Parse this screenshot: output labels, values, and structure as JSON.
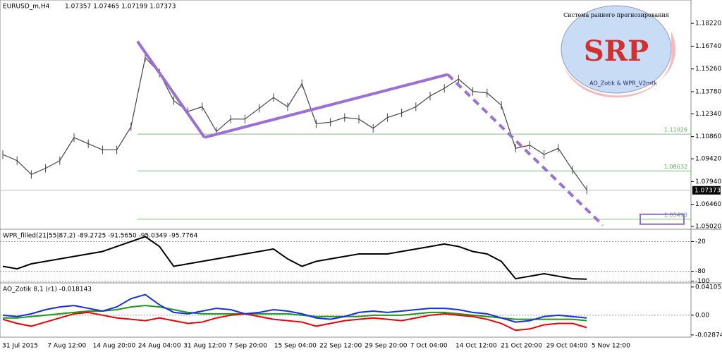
{
  "header": {
    "symbol": "EURUSD_m,H4",
    "quotes": "1.07357 1.07465 1.07199 1.07373"
  },
  "price_panel": {
    "ylim": [
      1.0484,
      1.1974
    ],
    "yticks": [
      {
        "value": 1.1822,
        "label": "1.18220"
      },
      {
        "value": 1.1674,
        "label": "1.16740"
      },
      {
        "value": 1.1526,
        "label": "1.15260"
      },
      {
        "value": 1.1378,
        "label": "1.13780"
      },
      {
        "value": 1.1234,
        "label": "1.12340"
      },
      {
        "value": 1.1086,
        "label": "1.10860"
      },
      {
        "value": 1.0942,
        "label": "1.09420"
      },
      {
        "value": 1.0794,
        "label": "1.07940"
      },
      {
        "value": 1.0646,
        "label": "1.06460"
      },
      {
        "value": 1.0502,
        "label": "1.05020"
      }
    ],
    "closes": [
      1.097,
      1.093,
      1.084,
      1.088,
      1.093,
      1.108,
      1.104,
      1.1,
      1.1,
      1.115,
      1.16,
      1.15,
      1.132,
      1.125,
      1.128,
      1.112,
      1.12,
      1.12,
      1.127,
      1.134,
      1.128,
      1.143,
      1.117,
      1.118,
      1.121,
      1.12,
      1.114,
      1.121,
      1.124,
      1.128,
      1.135,
      1.14,
      1.146,
      1.138,
      1.137,
      1.129,
      1.101,
      1.103,
      1.097,
      1.101,
      1.087,
      1.074
    ],
    "levels": [
      {
        "value": 1.11026,
        "label": "1.11026"
      },
      {
        "value": 1.08632,
        "label": "1.08632"
      },
      {
        "value": 1.05493,
        "label": "1.05493"
      }
    ],
    "current": {
      "value": 1.07373,
      "label": "1.07373"
    },
    "trend": [
      1.1705,
      1.1081,
      1.149,
      1.051
    ]
  },
  "wpr_panel": {
    "label": "WPR_filled(21|55|87,2) -89.2725 -91.5650 -95.0349 -95.7764",
    "ylim": [
      -102,
      2
    ],
    "yticks": [
      -20,
      -80,
      -100
    ],
    "values": [
      -70,
      -75,
      -65,
      -60,
      -55,
      -50,
      -45,
      -40,
      -30,
      -20,
      -10,
      -30,
      -70,
      -65,
      -60,
      -55,
      -50,
      -45,
      -40,
      -35,
      -55,
      -70,
      -60,
      -55,
      -50,
      -45,
      -45,
      -45,
      -40,
      -35,
      -30,
      -25,
      -30,
      -40,
      -45,
      -60,
      -95,
      -90,
      -85,
      -90,
      -95,
      -96
    ]
  },
  "ao_panel": {
    "label": "AO_Zotik 8.1 (r1) -0.018143",
    "ylim": [
      -0.032,
      0.046
    ],
    "yticks": [
      {
        "value": 0.041053,
        "label": "0.041053"
      },
      {
        "value": 0,
        "label": "0.00"
      },
      {
        "value": -0.02874,
        "label": "-0.02874"
      }
    ],
    "blue": [
      0,
      -0.002,
      0.002,
      0.008,
      0.012,
      0.014,
      0.01,
      0.006,
      0.012,
      0.024,
      0.03,
      0.015,
      0.004,
      0.002,
      0.006,
      0.01,
      0.008,
      0.002,
      0.004,
      0.008,
      0.006,
      0.002,
      -0.004,
      -0.006,
      -0.002,
      0.004,
      0.006,
      0.004,
      0.006,
      0.008,
      0.01,
      0.01,
      0.008,
      0.004,
      0.002,
      -0.004,
      -0.01,
      -0.008,
      -0.002,
      0,
      -0.002,
      -0.004
    ],
    "red": [
      -0.006,
      -0.012,
      -0.016,
      -0.01,
      -0.004,
      0.002,
      0.004,
      0,
      -0.004,
      -0.006,
      -0.008,
      -0.004,
      -0.008,
      -0.012,
      -0.01,
      -0.004,
      0,
      0.002,
      -0.002,
      -0.006,
      -0.008,
      -0.01,
      -0.016,
      -0.012,
      -0.008,
      -0.006,
      -0.004,
      -0.006,
      -0.008,
      -0.004,
      0,
      0.002,
      0,
      -0.002,
      -0.006,
      -0.012,
      -0.022,
      -0.02,
      -0.014,
      -0.012,
      -0.012,
      -0.018
    ],
    "green": [
      -0.004,
      -0.004,
      -0.002,
      0,
      0.002,
      0.004,
      0.006,
      0.006,
      0.008,
      0.012,
      0.014,
      0.012,
      0.008,
      0.004,
      0.002,
      0.002,
      0.002,
      0.002,
      0.002,
      0.002,
      0.002,
      0,
      -0.002,
      -0.002,
      -0.002,
      -0.002,
      0,
      0,
      0,
      0.002,
      0.004,
      0.004,
      0.002,
      0,
      -0.002,
      -0.004,
      -0.006,
      -0.006,
      -0.006,
      -0.006,
      -0.006,
      -0.008
    ]
  },
  "dates": [
    "31 Jul 2015",
    "7 Aug 12:00",
    "14 Aug 20:00",
    "24 Aug 04:00",
    "31 Aug 12:00",
    "7 Sep 20:00",
    "15 Sep 04:00",
    "22 Sep 12:00",
    "29 Sep 20:00",
    "7 Oct 04:00",
    "14 Oct 12:00",
    "21 Oct 20:00",
    "29 Oct 04:00",
    "5 Nov 12:00"
  ],
  "logo": {
    "arc": "Система раннего прогнозирования",
    "mark": "SRP",
    "footer": "AO_Zotik & WPR_V2mtk"
  }
}
